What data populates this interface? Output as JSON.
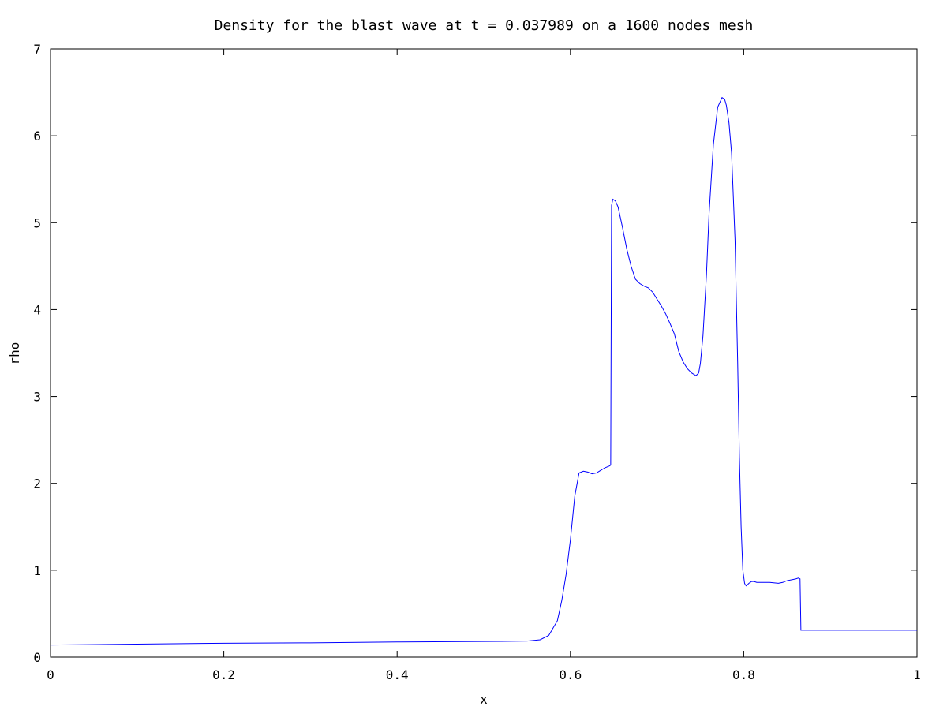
{
  "chart_data": {
    "type": "line",
    "title": "Density for the blast wave at t = 0.037989 on a 1600 nodes mesh",
    "xlabel": "x",
    "ylabel": "rho",
    "xlim": [
      0,
      1
    ],
    "ylim": [
      0,
      7
    ],
    "grid": false,
    "x_ticks": [
      "0",
      "0.2",
      "0.4",
      "0.6",
      "0.8",
      "1"
    ],
    "y_ticks": [
      "0",
      "1",
      "2",
      "3",
      "4",
      "5",
      "6",
      "7"
    ],
    "colors": {
      "line": "#0000ff",
      "axes": "#000000",
      "background": "#ffffff"
    },
    "series": [
      {
        "x": [
          0.0,
          0.1,
          0.2,
          0.3,
          0.4,
          0.5,
          0.55,
          0.565,
          0.575,
          0.585,
          0.59,
          0.595,
          0.6,
          0.605,
          0.61,
          0.615,
          0.62,
          0.625,
          0.63,
          0.635,
          0.64,
          0.645,
          0.6465,
          0.6475,
          0.649,
          0.652,
          0.655,
          0.66,
          0.665,
          0.67,
          0.675,
          0.68,
          0.685,
          0.69,
          0.695,
          0.7,
          0.705,
          0.71,
          0.715,
          0.72,
          0.725,
          0.73,
          0.735,
          0.74,
          0.745,
          0.748,
          0.75,
          0.753,
          0.757,
          0.76,
          0.765,
          0.77,
          0.775,
          0.778,
          0.78,
          0.783,
          0.786,
          0.79,
          0.793,
          0.795,
          0.797,
          0.799,
          0.801,
          0.802,
          0.803,
          0.804,
          0.806,
          0.809,
          0.812,
          0.815,
          0.82,
          0.83,
          0.84,
          0.845,
          0.85,
          0.855,
          0.86,
          0.863,
          0.865,
          0.866,
          0.868,
          0.88,
          0.9,
          0.95,
          1.0
        ],
        "y": [
          0.14,
          0.15,
          0.16,
          0.165,
          0.175,
          0.18,
          0.185,
          0.2,
          0.25,
          0.42,
          0.65,
          0.95,
          1.35,
          1.85,
          2.12,
          2.14,
          2.13,
          2.11,
          2.12,
          2.15,
          2.18,
          2.2,
          2.21,
          5.2,
          5.27,
          5.25,
          5.18,
          4.95,
          4.7,
          4.5,
          4.35,
          4.3,
          4.27,
          4.25,
          4.2,
          4.12,
          4.04,
          3.95,
          3.84,
          3.72,
          3.52,
          3.4,
          3.32,
          3.27,
          3.24,
          3.27,
          3.38,
          3.7,
          4.4,
          5.1,
          5.9,
          6.33,
          6.44,
          6.42,
          6.35,
          6.15,
          5.8,
          4.8,
          3.4,
          2.3,
          1.5,
          1.0,
          0.85,
          0.83,
          0.82,
          0.83,
          0.85,
          0.87,
          0.87,
          0.86,
          0.86,
          0.86,
          0.85,
          0.86,
          0.88,
          0.89,
          0.9,
          0.91,
          0.9,
          0.31,
          0.31,
          0.31,
          0.31,
          0.31,
          0.31
        ]
      }
    ]
  }
}
